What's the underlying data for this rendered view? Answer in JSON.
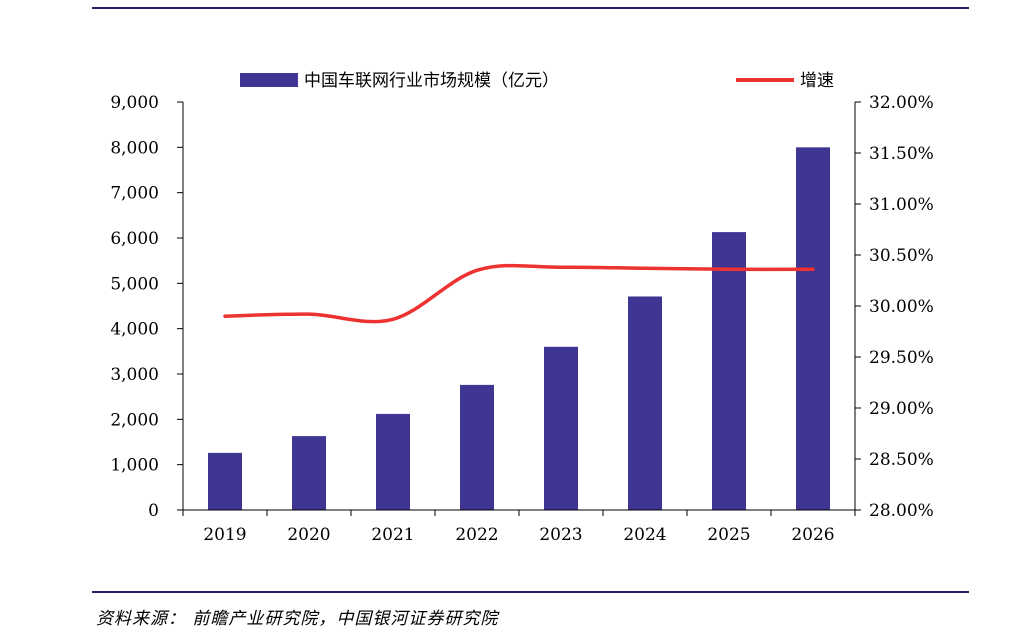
{
  "chart_data": {
    "type": "bar",
    "categories": [
      "2019",
      "2020",
      "2021",
      "2022",
      "2023",
      "2024",
      "2025",
      "2026"
    ],
    "series": [
      {
        "name": "中国车联网行业市场规模（亿元）",
        "type": "bar",
        "axis": "left",
        "color": "#3f3693",
        "values": [
          1260,
          1630,
          2120,
          2760,
          3600,
          4710,
          6130,
          8000
        ]
      },
      {
        "name": "增速",
        "type": "line",
        "axis": "right",
        "color": "#ee3131",
        "values": [
          29.9,
          29.92,
          29.87,
          30.35,
          30.38,
          30.37,
          30.36,
          30.36
        ]
      }
    ],
    "y_left": {
      "range": [
        0,
        9000
      ],
      "ticks": [
        0,
        1000,
        2000,
        3000,
        4000,
        5000,
        6000,
        7000,
        8000,
        9000
      ],
      "tick_labels": [
        "0",
        "1,000",
        "2,000",
        "3,000",
        "4,000",
        "5,000",
        "6,000",
        "7,000",
        "8,000",
        "9,000"
      ]
    },
    "y_right": {
      "range": [
        28.0,
        32.0
      ],
      "ticks": [
        28.0,
        28.5,
        29.0,
        29.5,
        30.0,
        30.5,
        31.0,
        31.5,
        32.0
      ],
      "tick_labels": [
        "28.00%",
        "28.50%",
        "29.00%",
        "29.50%",
        "30.00%",
        "30.50%",
        "31.00%",
        "31.50%",
        "32.00%"
      ]
    },
    "legend_position": "top",
    "grid": false
  },
  "source": "资料来源：  前瞻产业研究院，中国银河证券研究院"
}
